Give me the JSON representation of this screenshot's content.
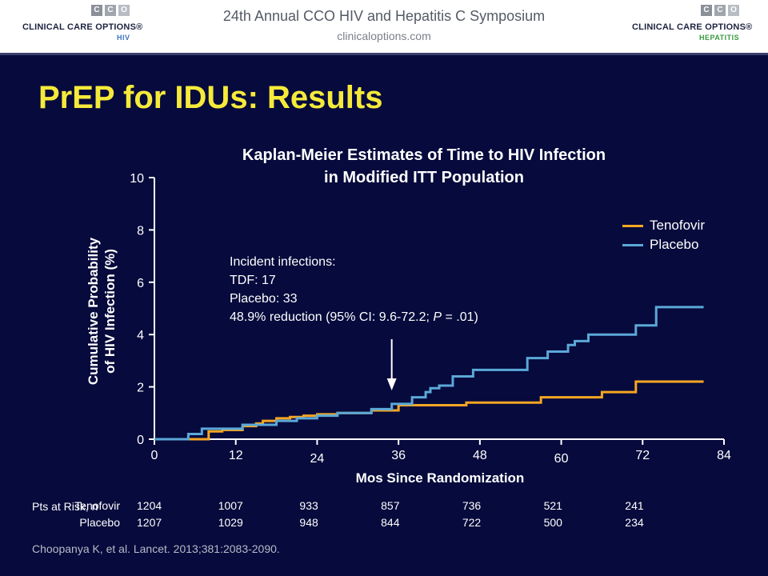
{
  "header": {
    "title": "24th Annual CCO HIV and Hepatitis C Symposium",
    "subtitle": "clinicaloptions.com",
    "logo_left": {
      "name": "CLINICAL CARE OPTIONS®",
      "tag": "HIV",
      "letters": [
        "C",
        "C",
        "O"
      ]
    },
    "logo_right": {
      "name": "CLINICAL CARE OPTIONS®",
      "tag": "HEPATITIS",
      "letters": [
        "C",
        "C",
        "O"
      ]
    }
  },
  "slide_title": "PrEP for IDUs: Results",
  "colors": {
    "tenofovir": "#f5a623",
    "placebo": "#5ba8d8",
    "title": "#f5ea3a",
    "background": "#060a3c"
  },
  "chart_data": {
    "type": "line",
    "step": true,
    "title_line1": "Kaplan-Meier Estimates of Time to HIV Infection",
    "title_line2": "in Modified ITT Population",
    "ylabel_line1": "Cumulative Probability",
    "ylabel_line2": "of HIV Infection (%)",
    "xlabel": "Mos Since Randomization",
    "xlim": [
      0,
      84
    ],
    "ylim": [
      0,
      10
    ],
    "xticks": [
      "0",
      "12",
      "24",
      "36",
      "48",
      "60",
      "72",
      "84"
    ],
    "yticks": [
      "0",
      "2",
      "4",
      "6",
      "8",
      "10"
    ],
    "legend_position": "top-right",
    "series": [
      {
        "name": "Tenofovir",
        "color": "#f5a623",
        "x": [
          0,
          8,
          10,
          13,
          15,
          16,
          18,
          20,
          22,
          24,
          27,
          32,
          36,
          46,
          57,
          66,
          71,
          81
        ],
        "y": [
          0,
          0.3,
          0.35,
          0.5,
          0.6,
          0.7,
          0.8,
          0.85,
          0.9,
          0.95,
          1.0,
          1.1,
          1.3,
          1.4,
          1.6,
          1.8,
          2.2,
          2.2
        ]
      },
      {
        "name": "Placebo",
        "color": "#5ba8d8",
        "x": [
          0,
          5,
          7,
          11,
          13,
          18,
          21,
          24,
          27,
          32,
          35,
          38,
          40,
          40.7,
          42,
          44,
          47,
          51,
          55,
          58,
          61,
          62,
          64,
          71,
          74,
          81
        ],
        "y": [
          0,
          0.2,
          0.4,
          0.4,
          0.55,
          0.7,
          0.8,
          0.9,
          1.0,
          1.15,
          1.35,
          1.6,
          1.8,
          1.95,
          2.05,
          2.4,
          2.65,
          2.65,
          3.1,
          3.35,
          3.6,
          3.75,
          4.0,
          4.35,
          5.05,
          5.05
        ]
      }
    ],
    "annotation": {
      "lines": [
        "Incident infections:",
        "TDF: 17",
        "Placebo: 33"
      ],
      "line4_pre": "48.9% reduction (95% CI: 9.6-72.2; ",
      "line4_italic": "P",
      "line4_post": " = .01)",
      "arrow_x": 35
    },
    "at_risk": {
      "title": "Pts at Risk, n",
      "months": [
        0,
        12,
        24,
        36,
        48,
        60,
        72
      ],
      "rows": [
        {
          "name": "Tenofovir",
          "values": [
            "1204",
            "1007",
            "933",
            "857",
            "736",
            "521",
            "241"
          ]
        },
        {
          "name": "Placebo",
          "values": [
            "1207",
            "1029",
            "948",
            "844",
            "722",
            "500",
            "234"
          ]
        }
      ]
    }
  },
  "citation": "Choopanya K, et al. Lancet. 2013;381:2083-2090."
}
